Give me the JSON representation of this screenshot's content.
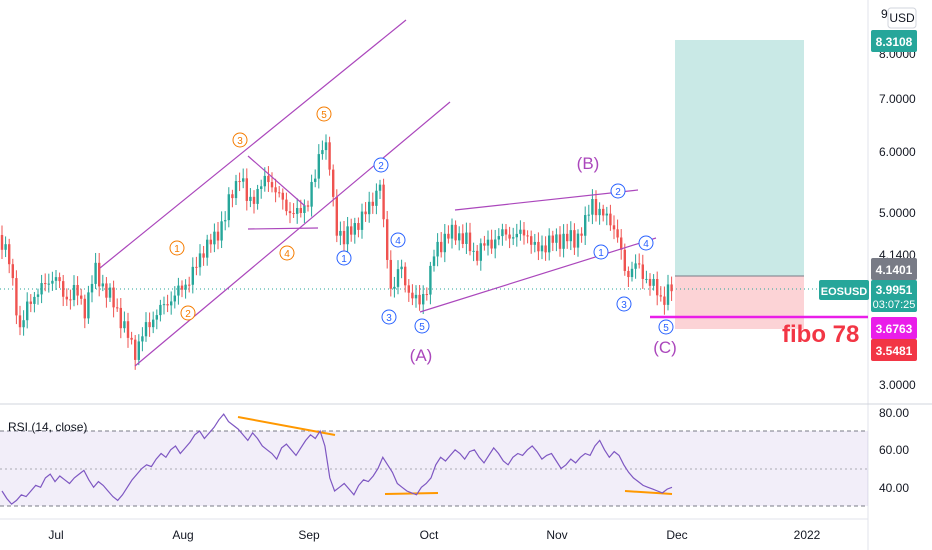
{
  "chart_data": [
    {
      "type": "candlestick",
      "symbol": "EOSUSD",
      "currency": "USD",
      "x_ticks": [
        "Jul",
        "Aug",
        "Sep",
        "Oct",
        "Nov",
        "Dec",
        "2022"
      ],
      "y_ticks": [
        "9",
        "8.0000",
        "7.0000",
        "6.0000",
        "5.0000",
        "4.1400",
        "3.0000"
      ],
      "ylim": [
        3.0,
        9.0
      ],
      "price_tags": [
        {
          "label": "8.3108",
          "value": 8.3108,
          "color": "#26a69a"
        },
        {
          "label": "4.1401",
          "value": 4.1401,
          "color": "#787b86"
        },
        {
          "label": "3.6763",
          "value": 3.6763,
          "color": "#e91ee9"
        },
        {
          "label": "3.5481",
          "value": 3.5481,
          "color": "#f23645"
        }
      ],
      "last_price": {
        "symbol": "EOSUSD",
        "value": "3.9951",
        "countdown": "03:07:25",
        "color": "#26a69a"
      },
      "wave_labels": {
        "impulse_up": [
          "1",
          "2",
          "3",
          "4",
          "5"
        ],
        "impulse_down": [
          "1",
          "2",
          "3",
          "4",
          "5"
        ],
        "corrective": [
          "(A)",
          "(B)",
          "(C)"
        ]
      },
      "annotation": "fibo 78",
      "trade_box": {
        "target": 8.3108,
        "entry": 4.1401,
        "stop": 3.5481
      }
    },
    {
      "type": "line",
      "title": "RSI (14, close)",
      "y_ticks": [
        "80.00",
        "60.00",
        "40.00"
      ],
      "ylim": [
        30,
        82
      ],
      "levels": [
        70,
        50,
        30
      ],
      "series": [
        {
          "values": [
            38,
            34,
            31,
            33,
            36,
            35,
            38,
            41,
            40,
            45,
            47,
            43,
            46,
            44,
            42,
            45,
            47,
            49,
            44,
            40,
            43,
            41,
            38,
            35,
            33,
            36,
            40,
            44,
            47,
            50,
            52,
            51,
            55,
            58,
            56,
            60,
            62,
            58,
            61,
            64,
            68,
            70,
            66,
            69,
            72,
            76,
            79,
            75,
            73,
            71,
            68,
            65,
            69,
            66,
            62,
            60,
            58,
            55,
            61,
            63,
            60,
            57,
            61,
            65,
            68,
            66,
            70,
            62,
            45,
            38,
            40,
            42,
            39,
            36,
            41,
            44,
            43,
            46,
            50,
            56,
            52,
            48,
            42,
            40,
            38,
            37,
            36,
            40,
            42,
            45,
            52,
            56,
            54,
            57,
            60,
            58,
            55,
            59,
            60,
            56,
            53,
            57,
            61,
            58,
            54,
            52,
            56,
            58,
            57,
            60,
            62,
            59,
            55,
            57,
            58,
            54,
            50,
            52,
            55,
            53,
            56,
            58,
            57,
            62,
            65,
            60,
            56,
            59,
            57,
            52,
            48,
            45,
            43,
            41,
            40,
            39,
            38,
            37,
            39,
            40
          ]
        }
      ]
    }
  ]
}
